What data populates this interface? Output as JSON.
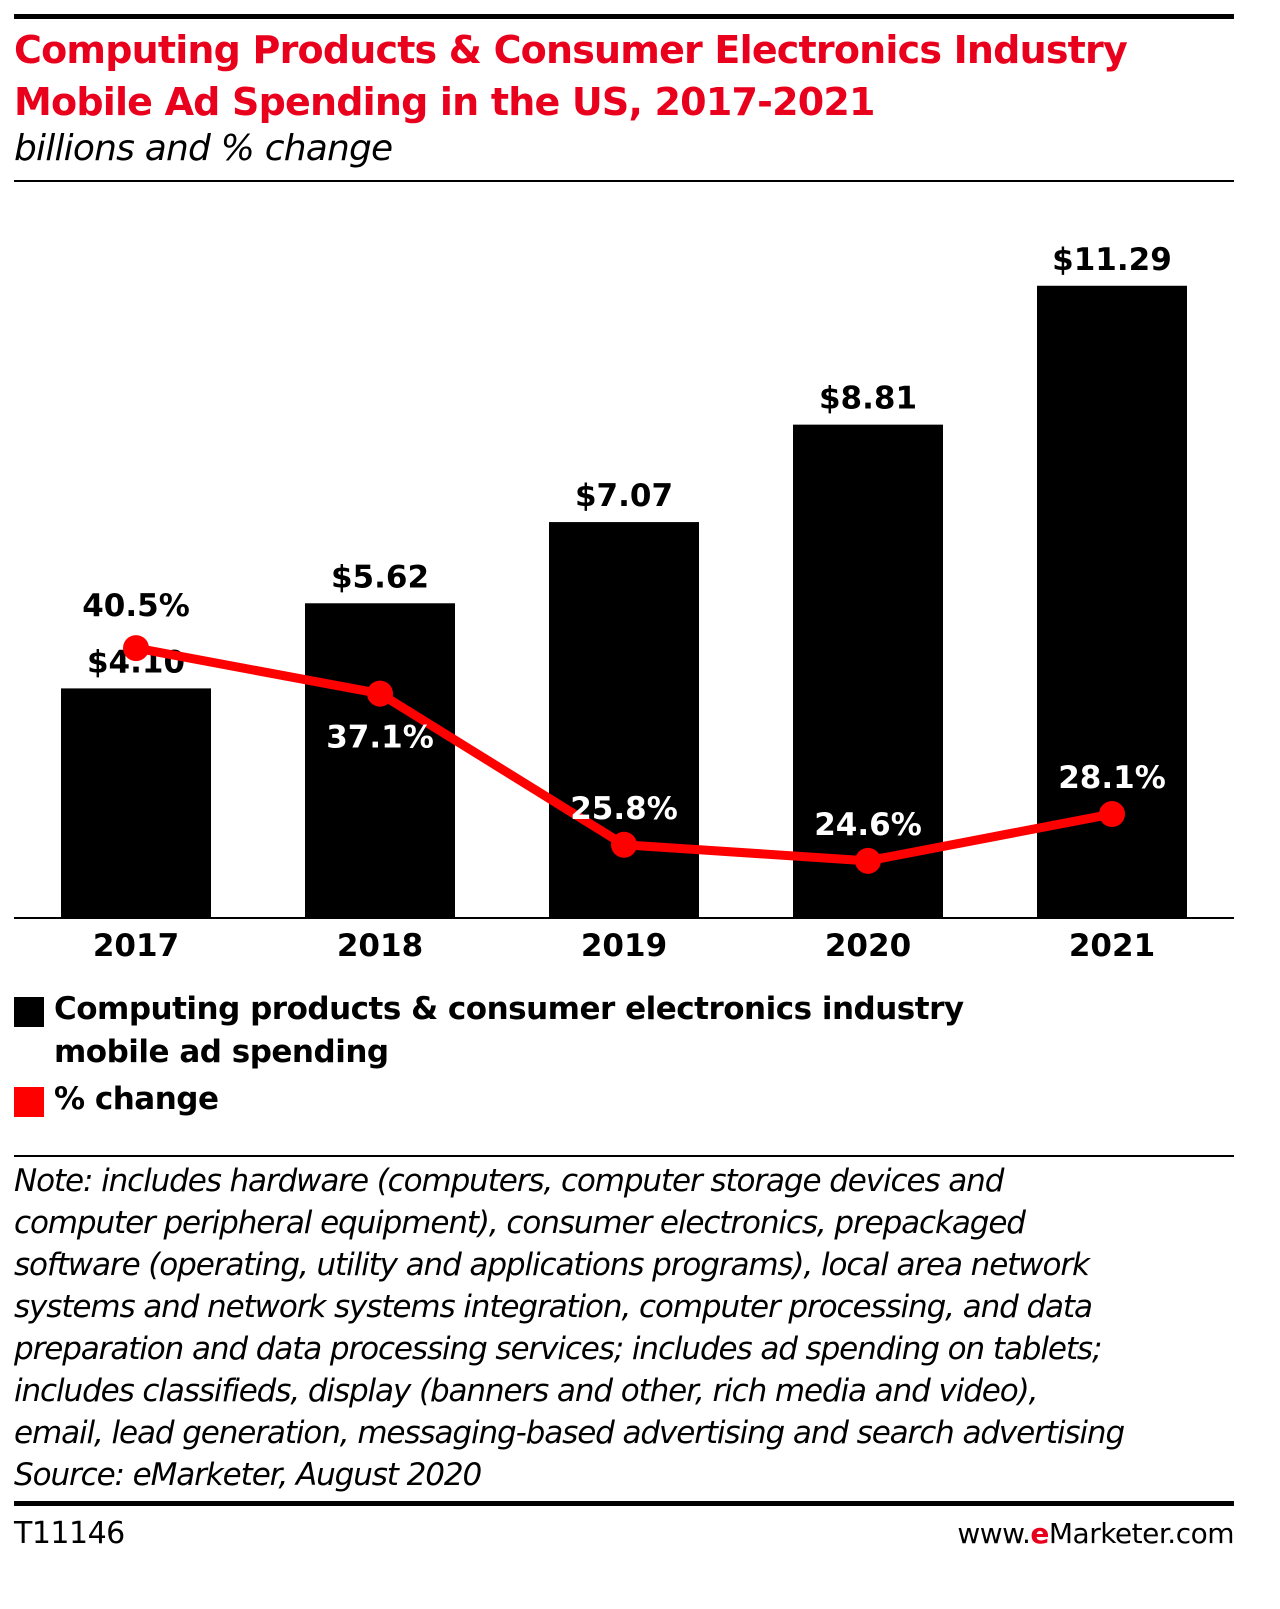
{
  "colors": {
    "title": "#e8001c",
    "bar": "#000000",
    "line": "#ff0000",
    "brand_e": "#e8001c"
  },
  "header": {
    "title_lines": [
      "Computing Products & Consumer Electronics Industry",
      "Mobile Ad Spending in the US, 2017-2021"
    ],
    "subtitle": "billions and % change"
  },
  "chart_data": {
    "type": "bar",
    "categories": [
      "2017",
      "2018",
      "2019",
      "2020",
      "2021"
    ],
    "series": [
      {
        "name": "Computing products & consumer electronics industry mobile ad spending",
        "type": "bar",
        "values": [
          4.1,
          5.62,
          7.07,
          8.81,
          11.29
        ],
        "labels": [
          "$4.10",
          "$5.62",
          "$7.07",
          "$8.81",
          "$11.29"
        ]
      },
      {
        "name": "% change",
        "type": "line",
        "values": [
          40.5,
          37.1,
          25.8,
          24.6,
          28.1
        ],
        "labels": [
          "40.5%",
          "37.1%",
          "25.8%",
          "24.6%",
          "28.1%"
        ]
      }
    ],
    "title": "Computing Products & Consumer Electronics Industry Mobile Ad Spending in the US, 2017-2021",
    "subtitle": "billions and % change",
    "xlabel": "",
    "ylabel": "",
    "grid": false,
    "legend_position": "bottom"
  },
  "legend": {
    "items": [
      {
        "lines": [
          "Computing products & consumer electronics industry",
          "mobile ad spending"
        ]
      },
      {
        "lines": [
          "% change"
        ]
      }
    ]
  },
  "note": {
    "lines": [
      "Note: includes hardware (computers, computer storage devices and",
      "computer peripheral equipment), consumer electronics, prepackaged",
      "software (operating, utility and applications programs), local area network",
      "systems and network systems integration, computer processing, and data",
      "preparation and data processing services; includes ad spending on tablets;",
      "includes classifieds, display (banners and other, rich media and video),",
      "email, lead generation, messaging-based advertising and search advertising",
      "Source: eMarketer, August 2020"
    ]
  },
  "footer": {
    "id": "T11146",
    "brand_prefix": "www.",
    "brand_e": "e",
    "brand_name": "Marketer",
    "brand_suffix": ".com"
  }
}
